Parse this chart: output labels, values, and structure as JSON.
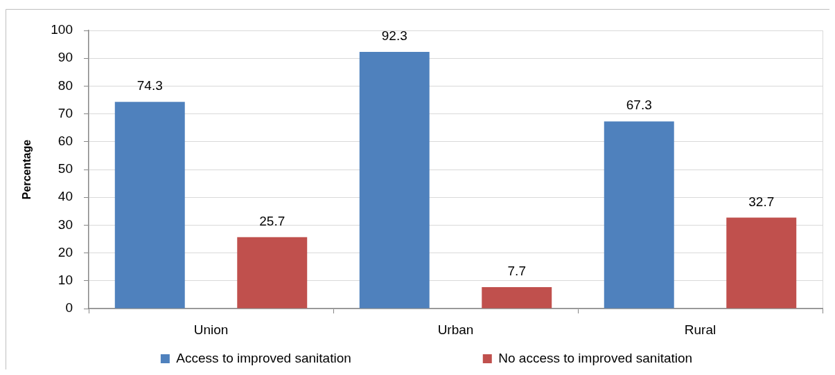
{
  "chart_data": {
    "type": "bar",
    "ylabel": "Percentage",
    "categories": [
      "Union",
      "Urban",
      "Rural"
    ],
    "series": [
      {
        "name": "Access to improved sanitation",
        "color": "#4f81bd",
        "values": [
          74.3,
          92.3,
          67.3
        ]
      },
      {
        "name": "No access to improved sanitation",
        "color": "#c0504d",
        "values": [
          25.7,
          7.7,
          32.7
        ]
      }
    ],
    "ylim": [
      0,
      100
    ],
    "yticks": [
      0,
      10,
      20,
      30,
      40,
      50,
      60,
      70,
      80,
      90,
      100
    ],
    "grid": "y",
    "legend": "bottom",
    "data_labels": true
  }
}
